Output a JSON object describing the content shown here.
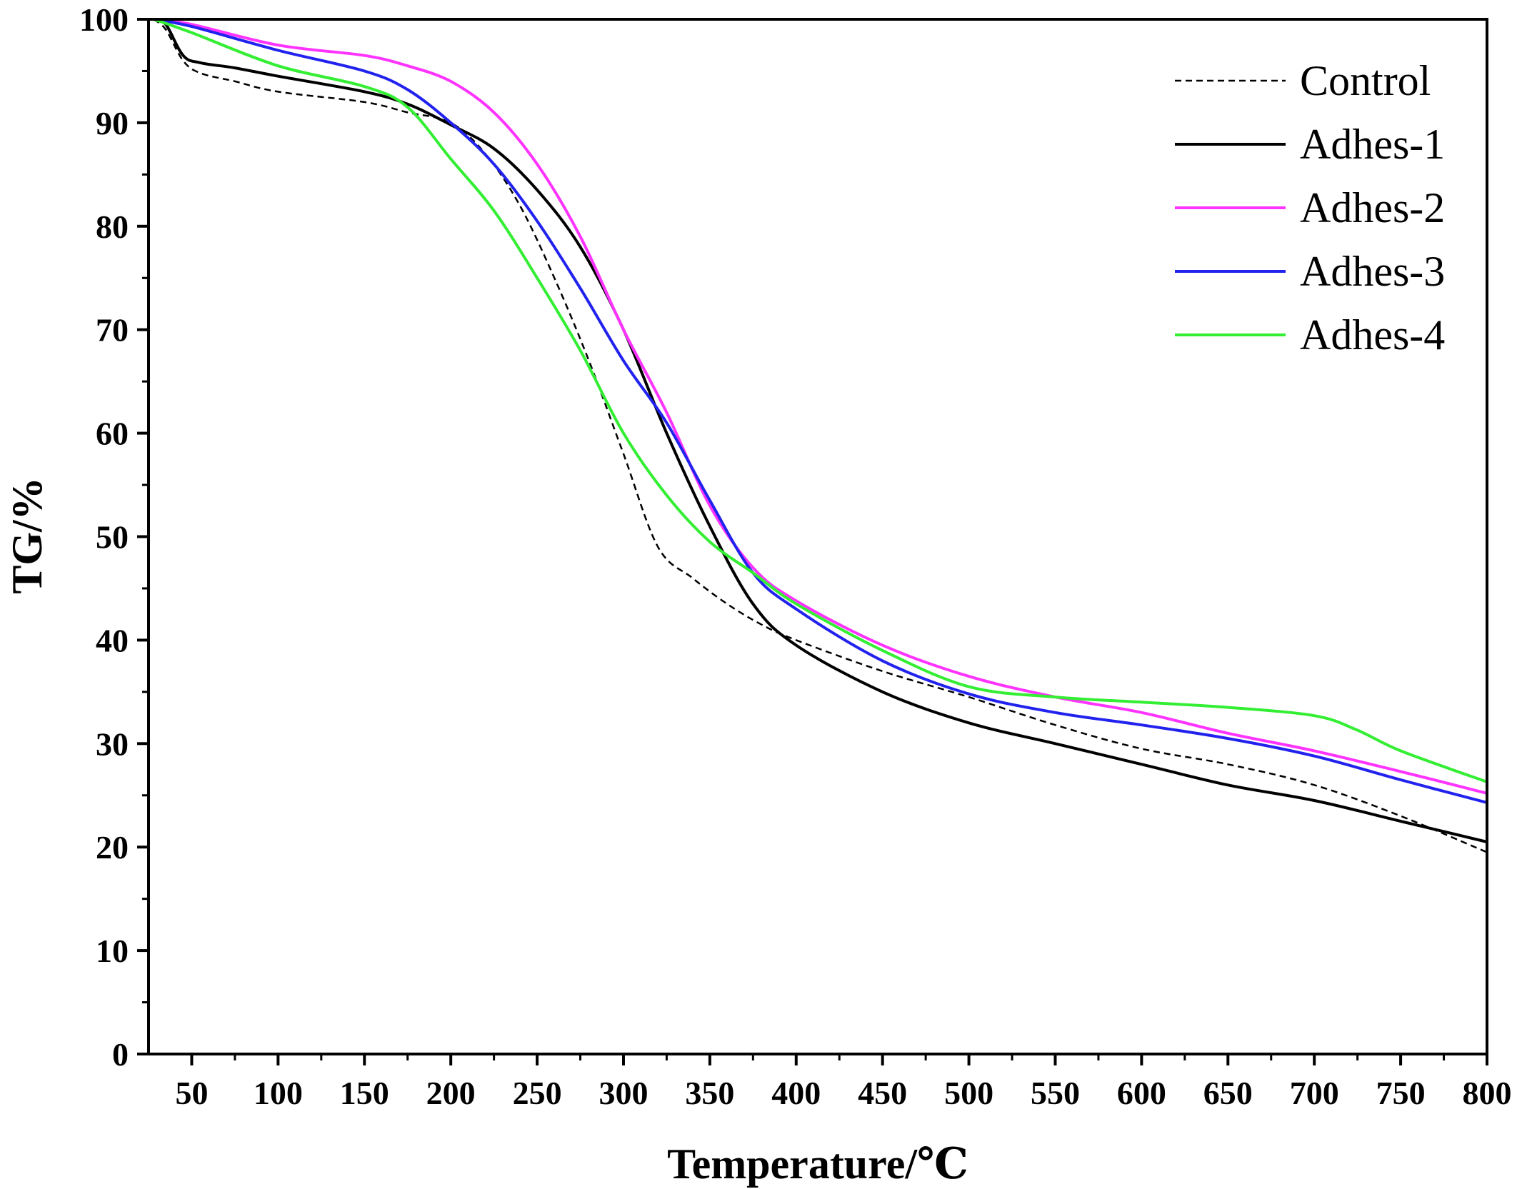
{
  "chart_data": {
    "type": "line",
    "title": "",
    "xlabel": "Temperature/℃",
    "ylabel": "TG/%",
    "xlim": [
      25,
      800
    ],
    "ylim": [
      0,
      100
    ],
    "xticks": [
      50,
      100,
      150,
      200,
      250,
      300,
      350,
      400,
      450,
      500,
      550,
      600,
      650,
      700,
      750,
      800
    ],
    "yticks": [
      0,
      10,
      20,
      30,
      40,
      50,
      60,
      70,
      80,
      90,
      100
    ],
    "grid": false,
    "legend_position": "top-right",
    "series": [
      {
        "name": "Control",
        "color": "#000000",
        "dash": "dashed",
        "points": [
          [
            28,
            100
          ],
          [
            35,
            99
          ],
          [
            45,
            96
          ],
          [
            55,
            94.8
          ],
          [
            75,
            94
          ],
          [
            100,
            93
          ],
          [
            150,
            92
          ],
          [
            175,
            91
          ],
          [
            200,
            90
          ],
          [
            220,
            87
          ],
          [
            240,
            82
          ],
          [
            260,
            75
          ],
          [
            280,
            67
          ],
          [
            300,
            58
          ],
          [
            320,
            49
          ],
          [
            340,
            46
          ],
          [
            360,
            43.5
          ],
          [
            380,
            41.5
          ],
          [
            400,
            40
          ],
          [
            450,
            37
          ],
          [
            500,
            34.5
          ],
          [
            550,
            31.8
          ],
          [
            600,
            29.5
          ],
          [
            650,
            28
          ],
          [
            700,
            26
          ],
          [
            750,
            23
          ],
          [
            800,
            19.5
          ]
        ]
      },
      {
        "name": "Adhes-1",
        "color": "#000000",
        "dash": "solid",
        "points": [
          [
            28,
            100
          ],
          [
            35,
            99.5
          ],
          [
            45,
            96.5
          ],
          [
            55,
            95.8
          ],
          [
            75,
            95.3
          ],
          [
            100,
            94.5
          ],
          [
            150,
            93
          ],
          [
            175,
            91.8
          ],
          [
            200,
            89.8
          ],
          [
            225,
            87.5
          ],
          [
            250,
            83.5
          ],
          [
            275,
            78
          ],
          [
            300,
            70
          ],
          [
            325,
            60
          ],
          [
            350,
            51
          ],
          [
            375,
            43.5
          ],
          [
            400,
            39.5
          ],
          [
            450,
            35
          ],
          [
            500,
            32
          ],
          [
            550,
            30
          ],
          [
            600,
            28
          ],
          [
            650,
            26
          ],
          [
            700,
            24.5
          ],
          [
            750,
            22.5
          ],
          [
            800,
            20.5
          ]
        ]
      },
      {
        "name": "Adhes-2",
        "color": "#ff33ff",
        "dash": "solid",
        "points": [
          [
            28,
            100
          ],
          [
            50,
            99.5
          ],
          [
            100,
            97.5
          ],
          [
            150,
            96.5
          ],
          [
            175,
            95.5
          ],
          [
            200,
            94
          ],
          [
            225,
            91
          ],
          [
            250,
            86
          ],
          [
            275,
            79
          ],
          [
            300,
            70
          ],
          [
            325,
            62
          ],
          [
            350,
            53
          ],
          [
            375,
            47
          ],
          [
            400,
            43.8
          ],
          [
            450,
            39.5
          ],
          [
            500,
            36.5
          ],
          [
            550,
            34.5
          ],
          [
            600,
            33
          ],
          [
            650,
            31
          ],
          [
            700,
            29.3
          ],
          [
            750,
            27.3
          ],
          [
            800,
            25.2
          ]
        ]
      },
      {
        "name": "Adhes-3",
        "color": "#2222ee",
        "dash": "solid",
        "points": [
          [
            28,
            100
          ],
          [
            50,
            99.3
          ],
          [
            100,
            97
          ],
          [
            150,
            95
          ],
          [
            175,
            93.2
          ],
          [
            200,
            90
          ],
          [
            225,
            86
          ],
          [
            250,
            80.5
          ],
          [
            275,
            74
          ],
          [
            300,
            67
          ],
          [
            325,
            61
          ],
          [
            350,
            53.5
          ],
          [
            375,
            46.5
          ],
          [
            400,
            43
          ],
          [
            450,
            38
          ],
          [
            500,
            34.8
          ],
          [
            550,
            33
          ],
          [
            600,
            31.8
          ],
          [
            650,
            30.5
          ],
          [
            700,
            28.8
          ],
          [
            750,
            26.5
          ],
          [
            800,
            24.3
          ]
        ]
      },
      {
        "name": "Adhes-4",
        "color": "#33ee33",
        "dash": "solid",
        "points": [
          [
            28,
            100
          ],
          [
            50,
            98.7
          ],
          [
            100,
            95.5
          ],
          [
            150,
            93.5
          ],
          [
            175,
            91.5
          ],
          [
            200,
            86.5
          ],
          [
            225,
            81.5
          ],
          [
            250,
            75
          ],
          [
            275,
            68
          ],
          [
            300,
            60
          ],
          [
            325,
            54
          ],
          [
            350,
            49.5
          ],
          [
            375,
            46.5
          ],
          [
            400,
            43.5
          ],
          [
            450,
            39
          ],
          [
            500,
            35.5
          ],
          [
            550,
            34.5
          ],
          [
            600,
            34
          ],
          [
            650,
            33.5
          ],
          [
            700,
            32.7
          ],
          [
            725,
            31.3
          ],
          [
            750,
            29.3
          ],
          [
            800,
            26.3
          ]
        ]
      }
    ]
  }
}
